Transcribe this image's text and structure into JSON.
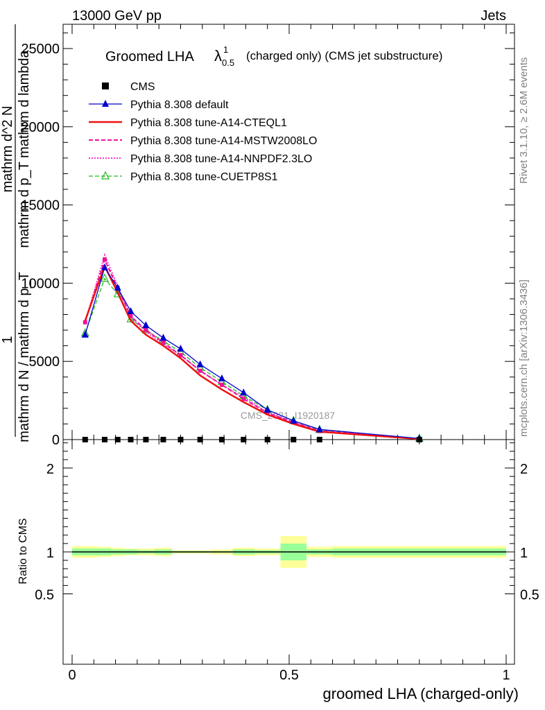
{
  "header": {
    "left": "13000 GeV pp",
    "right": "Jets"
  },
  "side": {
    "rivet": "Rivet 3.1.10, ≥ 2.6M events",
    "mcplots": "mcplots.cern.ch [arXiv:1306.3436]"
  },
  "plot_title": {
    "main": "Groomed LHA",
    "lambda": "λ",
    "sup": "1",
    "sub": "0.5",
    "rest": "(charged only) (CMS jet substructure)"
  },
  "watermark": "CMS_2021_I1920187",
  "y_label_main": {
    "numerator": "1",
    "denominator": "mathrm d N / mathrm d p_T",
    "numerator2": "mathrm d^2 N",
    "denominator2": "mathrm d p_T mathrm d lambda"
  },
  "y_label_ratio": "Ratio to CMS",
  "x_label": "groomed LHA (charged-only)",
  "colors": {
    "cms": "#000000",
    "default": "#0000cc",
    "cteql1": "#ee1111",
    "mstw": "#ee1199",
    "nnpdf": "#ff33cc",
    "cuetp8s1": "#22bb22",
    "band_inner": "#99ff99",
    "band_outer": "#ffff99"
  },
  "chart_data": [
    {
      "type": "line",
      "x": [
        0.03,
        0.075,
        0.105,
        0.135,
        0.17,
        0.21,
        0.25,
        0.295,
        0.345,
        0.395,
        0.45,
        0.51,
        0.57,
        0.8
      ],
      "ylim": [
        0,
        26500
      ],
      "xlim": [
        -0.04,
        1.0
      ],
      "yticks": [
        0,
        5000,
        10000,
        15000,
        20000,
        25000
      ],
      "ytick_labels": [
        "0",
        "5000",
        "10000",
        "15000",
        "20000",
        "25000"
      ],
      "legend_position": "top-left",
      "series": [
        {
          "name": "CMS",
          "values": [
            0,
            0,
            0,
            0,
            0,
            0,
            0,
            0,
            0,
            0,
            0,
            0,
            0,
            0
          ]
        },
        {
          "name": "Pythia 8.308 default",
          "values": [
            6700,
            11000,
            9700,
            8200,
            7300,
            6500,
            5800,
            4800,
            3900,
            3000,
            1900,
            1200,
            650,
            70
          ]
        },
        {
          "name": "Pythia 8.308 tune-A14-CTEQL1",
          "values": [
            7600,
            11100,
            9400,
            7600,
            6700,
            6000,
            5200,
            4100,
            3200,
            2400,
            1600,
            1000,
            500,
            40
          ]
        },
        {
          "name": "Pythia 8.308 tune-A14-MSTW2008LO",
          "values": [
            7500,
            11500,
            9700,
            7900,
            7000,
            6200,
            5400,
            4400,
            3500,
            2600,
            1700,
            1100,
            550,
            50
          ]
        },
        {
          "name": "Pythia 8.308 tune-A14-NNPDF2.3LO",
          "values": [
            7500,
            11800,
            9800,
            7800,
            6900,
            6100,
            5400,
            4400,
            3500,
            2700,
            1750,
            1100,
            560,
            50
          ]
        },
        {
          "name": "Pythia 8.308 tune-CUETP8S1",
          "values": [
            6800,
            10300,
            9300,
            7700,
            7000,
            6300,
            5600,
            4600,
            3700,
            2800,
            1900,
            1200,
            620,
            60
          ]
        }
      ]
    },
    {
      "type": "area",
      "ylabel": "Ratio to CMS",
      "xlabel": "groomed LHA (charged-only)",
      "ylim": [
        0.4,
        2.4
      ],
      "xlim": [
        -0.04,
        1.0
      ],
      "yticks": [
        0.5,
        1,
        2
      ],
      "ytick_labels": [
        "0.5",
        "1",
        "2"
      ],
      "xticks": [
        0,
        0.5,
        1
      ],
      "xtick_labels": [
        "0",
        "0.5",
        "1"
      ],
      "bins": [
        {
          "lo": 0.0,
          "hi": 0.06,
          "inner": 0.04,
          "outer": 0.07
        },
        {
          "lo": 0.06,
          "hi": 0.09,
          "inner": 0.04,
          "outer": 0.06
        },
        {
          "lo": 0.09,
          "hi": 0.12,
          "inner": 0.03,
          "outer": 0.05
        },
        {
          "lo": 0.12,
          "hi": 0.15,
          "inner": 0.03,
          "outer": 0.04
        },
        {
          "lo": 0.15,
          "hi": 0.19,
          "inner": 0.02,
          "outer": 0.04
        },
        {
          "lo": 0.19,
          "hi": 0.23,
          "inner": 0.03,
          "outer": 0.05
        },
        {
          "lo": 0.23,
          "hi": 0.27,
          "inner": 0.01,
          "outer": 0.02
        },
        {
          "lo": 0.27,
          "hi": 0.32,
          "inner": 0.01,
          "outer": 0.02
        },
        {
          "lo": 0.32,
          "hi": 0.37,
          "inner": 0.01,
          "outer": 0.03
        },
        {
          "lo": 0.37,
          "hi": 0.42,
          "inner": 0.03,
          "outer": 0.05
        },
        {
          "lo": 0.42,
          "hi": 0.48,
          "inner": 0.02,
          "outer": 0.04
        },
        {
          "lo": 0.48,
          "hi": 0.54,
          "inner": 0.1,
          "outer": 0.19
        },
        {
          "lo": 0.54,
          "hi": 0.6,
          "inner": 0.03,
          "outer": 0.06
        },
        {
          "lo": 0.6,
          "hi": 1.0,
          "inner": 0.04,
          "outer": 0.07
        }
      ]
    }
  ]
}
